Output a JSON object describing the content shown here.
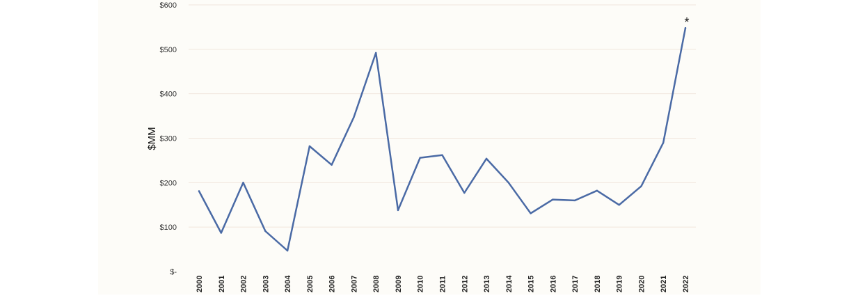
{
  "chart_data": {
    "type": "line",
    "title": "",
    "xlabel": "",
    "ylabel": "$MM",
    "ylim": [
      0,
      600
    ],
    "yticks": [
      {
        "value": 0,
        "label": "$-"
      },
      {
        "value": 100,
        "label": "$100"
      },
      {
        "value": 200,
        "label": "$200"
      },
      {
        "value": 300,
        "label": "$300"
      },
      {
        "value": 400,
        "label": "$400"
      },
      {
        "value": 500,
        "label": "$500"
      },
      {
        "value": 600,
        "label": "$600"
      }
    ],
    "grid": true,
    "legend": "none",
    "categories": [
      "2000",
      "2001",
      "2002",
      "2003",
      "2004",
      "2005",
      "2006",
      "2007",
      "2008",
      "2009",
      "2010",
      "2011",
      "2012",
      "2013",
      "2014",
      "2015",
      "2016",
      "2017",
      "2018",
      "2019",
      "2020",
      "2021",
      "2022"
    ],
    "series": [
      {
        "color": "#4a6aa5",
        "values": [
          181,
          87,
          200,
          91,
          47,
          282,
          240,
          347,
          492,
          138,
          256,
          262,
          177,
          254,
          200,
          131,
          162,
          160,
          182,
          150,
          192,
          290,
          548
        ]
      }
    ],
    "annotations": [
      {
        "text": "*",
        "category": "2022"
      }
    ]
  }
}
